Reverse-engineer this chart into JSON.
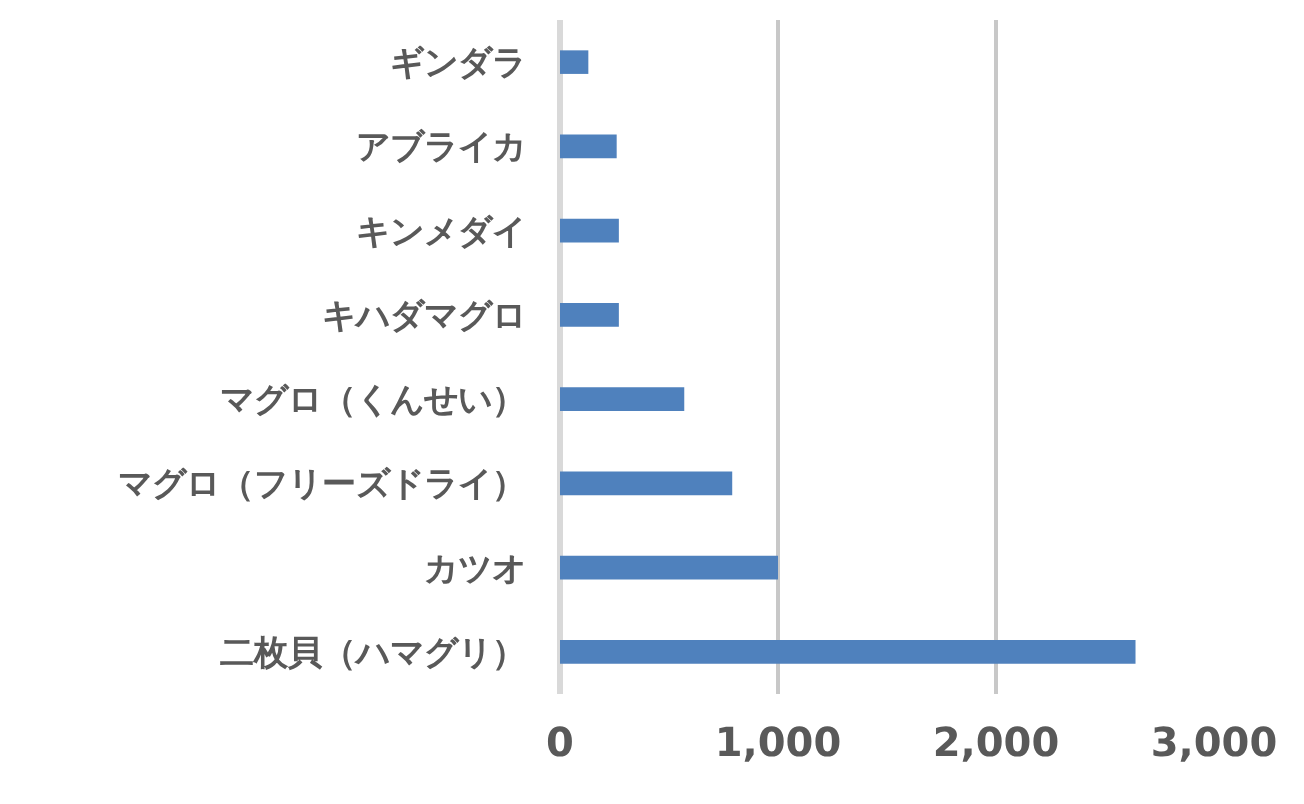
{
  "chart_data": {
    "type": "bar",
    "orientation": "horizontal",
    "categories": [
      "ギンダラ",
      "アブライカ",
      "キンメダイ",
      "キハダマグロ",
      "マグロ（くんせい）",
      "マグロ（フリーズドライ）",
      "カツオ",
      "二枚貝（ハマグリ）"
    ],
    "values": [
      130,
      260,
      270,
      270,
      570,
      790,
      1000,
      2640
    ],
    "color": "#4f81bd",
    "xlim": [
      0,
      3000
    ],
    "xticks": [
      0,
      {
        "value": 1000,
        "label": "1,000"
      },
      {
        "value": 2000,
        "label": "2,000"
      },
      {
        "value": 3000,
        "label": "3,000"
      }
    ],
    "grid": "x"
  }
}
